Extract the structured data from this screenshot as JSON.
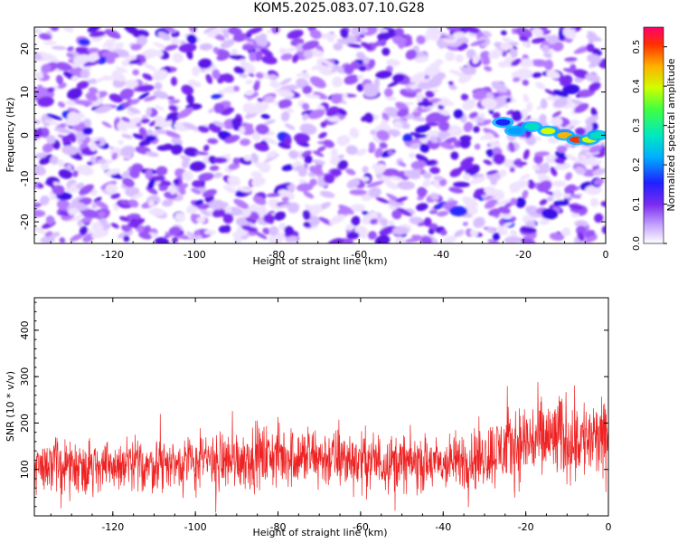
{
  "title": "KOM5.2025.083.07.10.G28",
  "chart_data": [
    {
      "type": "heatmap",
      "xlabel": "Height of straight line (km)",
      "ylabel": "Frequency (Hz)",
      "xlim": [
        -139,
        0
      ],
      "ylim": [
        -25,
        25
      ],
      "xticks": [
        "-120",
        "-100",
        "-80",
        "-60",
        "-40",
        "-20",
        "0"
      ],
      "yticks": [
        "20",
        "10",
        "0",
        "-10",
        "-20"
      ],
      "colorbar": {
        "label": "Normalized spectral amplitude",
        "range": [
          0,
          0.55
        ],
        "ticks": [
          "0.0",
          "0.1",
          "0.2",
          "0.3",
          "0.4",
          "0.5"
        ]
      },
      "colors": [
        "#ffffff",
        "#e8d6ff",
        "#b67bff",
        "#7a2cf0",
        "#4a10e0",
        "#1a20ff",
        "#00a0ff",
        "#00e0c0",
        "#40ff40",
        "#d0ff00",
        "#ffb000",
        "#ff3000",
        "#ff0070"
      ],
      "signal": {
        "x": [
          -25,
          -22,
          -18,
          -14,
          -10,
          -7,
          -4,
          -2
        ],
        "y": [
          3,
          1,
          2,
          1,
          0,
          -1,
          -1,
          0
        ],
        "amplitude": [
          0.18,
          0.22,
          0.35,
          0.45,
          0.5,
          0.55,
          0.45,
          0.35
        ]
      }
    },
    {
      "type": "line",
      "xlabel": "Height of straight line (km)",
      "ylabel": "SNR (10 * v/v)",
      "xlim": [
        -139,
        0
      ],
      "ylim": [
        0,
        470
      ],
      "xticks": [
        "-120",
        "-100",
        "-80",
        "-60",
        "-40",
        "-20",
        "0"
      ],
      "yticks": [
        "400",
        "300",
        "200",
        "100"
      ],
      "color": "#ee2222",
      "envelope": {
        "x": [
          -139,
          -120,
          -100,
          -80,
          -60,
          -40,
          -30,
          -20,
          -10,
          0
        ],
        "mean": [
          110,
          105,
          115,
          130,
          120,
          110,
          130,
          160,
          170,
          160
        ],
        "spread": [
          85,
          85,
          90,
          100,
          95,
          85,
          105,
          130,
          140,
          120
        ]
      }
    }
  ]
}
